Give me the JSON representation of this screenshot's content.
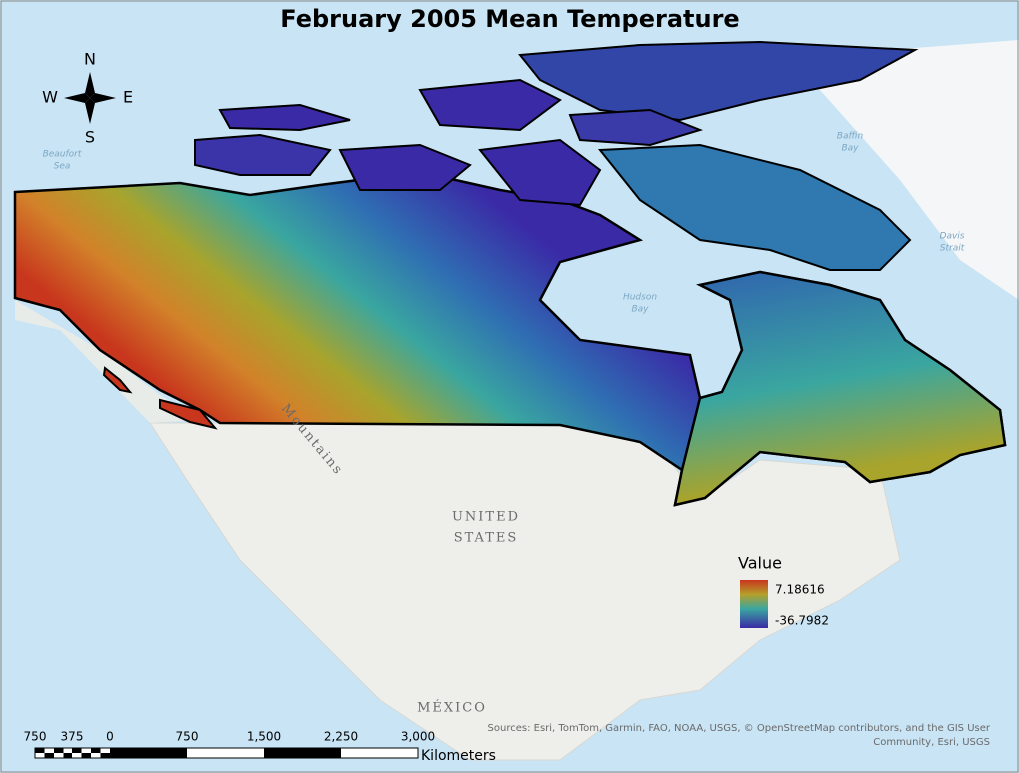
{
  "title": "February 2005 Mean Temperature",
  "compass": {
    "n": "N",
    "e": "E",
    "s": "S",
    "w": "W"
  },
  "legend": {
    "title": "Value",
    "max": 7.18616,
    "min": -36.7982
  },
  "scale_bar": {
    "ticks": [
      "750",
      "375",
      "0",
      "750",
      "1,500",
      "2,250",
      "3,000"
    ],
    "unit": "Kilometers"
  },
  "map_labels": [
    {
      "lines": [
        "Beaufort",
        "Sea"
      ]
    },
    {
      "lines": [
        "Baffin",
        "Bay"
      ]
    },
    {
      "lines": [
        "Davis",
        "Strait"
      ]
    },
    {
      "lines": [
        "Hudson",
        "Bay"
      ]
    },
    {
      "lines": [
        "UNITED",
        "STATES"
      ]
    },
    {
      "lines": [
        "MÉXICO"
      ]
    },
    {
      "lines": [
        "Mountains"
      ]
    }
  ],
  "attribution": [
    "Sources: Esri, TomTom, Garmin, FAO, NOAA, USGS, © OpenStreetMap contributors, and the GIS User",
    "Community, Esri, USGS"
  ]
}
